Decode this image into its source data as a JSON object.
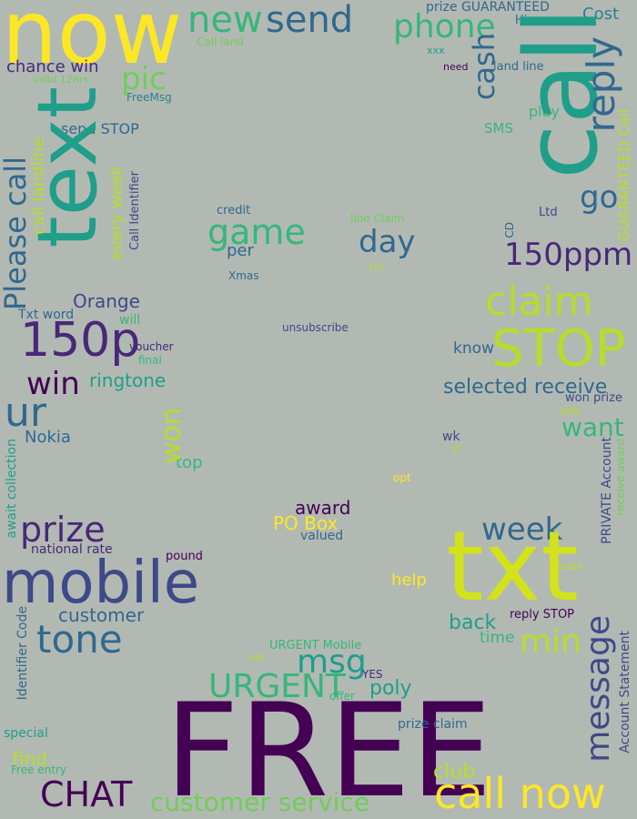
{
  "palette": {
    "background": "#b2b9b3",
    "yellow": "#fde725",
    "lime": "#b5de2b",
    "green": "#6ece58",
    "emerald": "#35b779",
    "teal": "#1f9e89",
    "cyan": "#26828e",
    "blue": "#31688e",
    "indigo": "#3e4989",
    "purple": "#482878",
    "dark_purple": "#440154"
  },
  "words": [
    {
      "id": "now",
      "text": "now",
      "color": "#fde725"
    },
    {
      "id": "new",
      "text": "new",
      "color": "#35b779"
    },
    {
      "id": "send",
      "text": "send",
      "color": "#31688e"
    },
    {
      "id": "phone",
      "text": "phone",
      "color": "#35b779"
    },
    {
      "id": "prize-guaranteed",
      "text": "prize GUARANTEED",
      "color": "#31688e"
    },
    {
      "id": "hi",
      "text": "Hi",
      "color": "#31688e"
    },
    {
      "id": "cost",
      "text": "Cost",
      "color": "#26828e"
    },
    {
      "id": "call-land",
      "text": "Call land",
      "color": "#6ece58"
    },
    {
      "id": "xxx",
      "text": "xxx",
      "color": "#1f9e89"
    },
    {
      "id": "chance-win",
      "text": "chance win",
      "color": "#482878"
    },
    {
      "id": "pic",
      "text": "pic",
      "color": "#6ece58"
    },
    {
      "id": "need",
      "text": "need",
      "color": "#440154"
    },
    {
      "id": "land-line",
      "text": "land line",
      "color": "#31688e"
    },
    {
      "id": "valid-12hrs",
      "text": "valid 12hrs",
      "color": "#6ece58"
    },
    {
      "id": "freemsg",
      "text": "FreeMsg",
      "color": "#26828e"
    },
    {
      "id": "send-stop",
      "text": "send STOP",
      "color": "#31688e"
    },
    {
      "id": "sms",
      "text": "SMS",
      "color": "#35b779"
    },
    {
      "id": "play",
      "text": "play",
      "color": "#35b779"
    },
    {
      "id": "credit",
      "text": "credit",
      "color": "#31688e"
    },
    {
      "id": "ltd",
      "text": "Ltd",
      "color": "#3e4989"
    },
    {
      "id": "go",
      "text": "go",
      "color": "#31688e"
    },
    {
      "id": "line-claim",
      "text": "line Claim",
      "color": "#6ece58"
    },
    {
      "id": "game",
      "text": "game",
      "color": "#35b779"
    },
    {
      "id": "day",
      "text": "day",
      "color": "#31688e"
    },
    {
      "id": "per",
      "text": "per",
      "color": "#31688e"
    },
    {
      "id": "150ppm",
      "text": "150ppm",
      "color": "#482878"
    },
    {
      "id": "1st",
      "text": "1st",
      "color": "#b5de2b"
    },
    {
      "id": "xmas",
      "text": "Xmas",
      "color": "#31688e"
    },
    {
      "id": "orange",
      "text": "Orange",
      "color": "#3e4989"
    },
    {
      "id": "claim",
      "text": "claim",
      "color": "#b5de2b"
    },
    {
      "id": "txt-word",
      "text": "Txt word",
      "color": "#31688e"
    },
    {
      "id": "will",
      "text": "will",
      "color": "#35b779"
    },
    {
      "id": "150p",
      "text": "150p",
      "color": "#482878"
    },
    {
      "id": "unsubscribe",
      "text": "unsubscribe",
      "color": "#3e4989"
    },
    {
      "id": "stop",
      "text": "STOP",
      "color": "#b5de2b"
    },
    {
      "id": "voucher",
      "text": "voucher",
      "color": "#482878"
    },
    {
      "id": "final",
      "text": "final",
      "color": "#35b779"
    },
    {
      "id": "know",
      "text": "know",
      "color": "#31688e"
    },
    {
      "id": "win",
      "text": "win",
      "color": "#440154"
    },
    {
      "id": "ringtone",
      "text": "ringtone",
      "color": "#1f9e89"
    },
    {
      "id": "selected-receive",
      "text": "selected receive",
      "color": "#31688e"
    },
    {
      "id": "ur",
      "text": "ur",
      "color": "#31688e"
    },
    {
      "id": "won-prize",
      "text": "won prize",
      "color": "#3e4989"
    },
    {
      "id": "info",
      "text": "info",
      "color": "#b5de2b"
    },
    {
      "id": "want",
      "text": "want",
      "color": "#35b779"
    },
    {
      "id": "nokia",
      "text": "Nokia",
      "color": "#31688e"
    },
    {
      "id": "wk",
      "text": "wk",
      "color": "#3e4989"
    },
    {
      "id": "yr",
      "text": "yr",
      "color": "#b5de2b"
    },
    {
      "id": "top",
      "text": "top",
      "color": "#35b779"
    },
    {
      "id": "opt",
      "text": "opt",
      "color": "#fde725"
    },
    {
      "id": "prize",
      "text": "prize",
      "color": "#482878"
    },
    {
      "id": "award",
      "text": "award",
      "color": "#440154"
    },
    {
      "id": "po-box",
      "text": "PO Box",
      "color": "#fde725"
    },
    {
      "id": "week",
      "text": "week",
      "color": "#31688e"
    },
    {
      "id": "national-rate",
      "text": "national rate",
      "color": "#482878"
    },
    {
      "id": "valued",
      "text": "valued",
      "color": "#31688e"
    },
    {
      "id": "mobile",
      "text": "mobile",
      "color": "#3e4989"
    },
    {
      "id": "pound",
      "text": "pound",
      "color": "#440154"
    },
    {
      "id": "txt-big",
      "text": "txt",
      "color": "#d2e21b"
    },
    {
      "id": "code",
      "text": "code",
      "color": "#b5de2b"
    },
    {
      "id": "help",
      "text": "help",
      "color": "#fde725"
    },
    {
      "id": "customer",
      "text": "customer",
      "color": "#31688e"
    },
    {
      "id": "tone",
      "text": "tone",
      "color": "#31688e"
    },
    {
      "id": "reply-stop",
      "text": "reply STOP",
      "color": "#440154"
    },
    {
      "id": "back",
      "text": "back",
      "color": "#1f9e89"
    },
    {
      "id": "min",
      "text": "min",
      "color": "#b5de2b"
    },
    {
      "id": "time",
      "text": "time",
      "color": "#35b779"
    },
    {
      "id": "urgent-mobile",
      "text": "URGENT Mobile",
      "color": "#35b779"
    },
    {
      "id": "msg",
      "text": "msg",
      "color": "#1f9e89"
    },
    {
      "id": "net",
      "text": "net",
      "color": "#b5de2b"
    },
    {
      "id": "yes",
      "text": "YES",
      "color": "#482878"
    },
    {
      "id": "urgent",
      "text": "URGENT",
      "color": "#35b779"
    },
    {
      "id": "poly",
      "text": "poly",
      "color": "#1f9e89"
    },
    {
      "id": "offer",
      "text": "offer",
      "color": "#35b779"
    },
    {
      "id": "free",
      "text": "FREE",
      "color": "#440154"
    },
    {
      "id": "prize-claim",
      "text": "prize claim",
      "color": "#31688e"
    },
    {
      "id": "special",
      "text": "special",
      "color": "#1f9e89"
    },
    {
      "id": "find",
      "text": "find",
      "color": "#b5de2b"
    },
    {
      "id": "free-entry",
      "text": "Free entry",
      "color": "#35b779"
    },
    {
      "id": "club",
      "text": "club",
      "color": "#b5de2b"
    },
    {
      "id": "chat",
      "text": "CHAT",
      "color": "#440154"
    },
    {
      "id": "call-now",
      "text": "call now",
      "color": "#fde725"
    },
    {
      "id": "customer-service",
      "text": "customer service",
      "color": "#6ece58"
    },
    {
      "id": "text-v",
      "text": "text",
      "color": "#1f9e89"
    },
    {
      "id": "please-call",
      "text": "Please call",
      "color": "#31688e"
    },
    {
      "id": "call-landline",
      "text": "call landline",
      "color": "#b5de2b"
    },
    {
      "id": "every-week",
      "text": "every week",
      "color": "#b5de2b"
    },
    {
      "id": "call-identifier",
      "text": "Call Identifier",
      "color": "#3e4989"
    },
    {
      "id": "cash",
      "text": "cash",
      "color": "#31688e"
    },
    {
      "id": "call-big",
      "text": "call",
      "color": "#1f9e89"
    },
    {
      "id": "reply",
      "text": "reply",
      "color": "#31688e"
    },
    {
      "id": "guaranteed-call",
      "text": "GUARANTEED Call",
      "color": "#b5de2b"
    },
    {
      "id": "cd",
      "text": "CD",
      "color": "#31688e"
    },
    {
      "id": "won",
      "text": "won",
      "color": "#b5de2b"
    },
    {
      "id": "await-collection",
      "text": "await collection",
      "color": "#1f9e89"
    },
    {
      "id": "identifier-code",
      "text": "Identifier Code",
      "color": "#31688e"
    },
    {
      "id": "private-account",
      "text": "PRIVATE Account",
      "color": "#3e4989"
    },
    {
      "id": "receive-award",
      "text": "receive award",
      "color": "#6ece58"
    },
    {
      "id": "message",
      "text": "message",
      "color": "#3e4989"
    },
    {
      "id": "account-statement",
      "text": "Account Statement",
      "color": "#3e4989"
    }
  ]
}
